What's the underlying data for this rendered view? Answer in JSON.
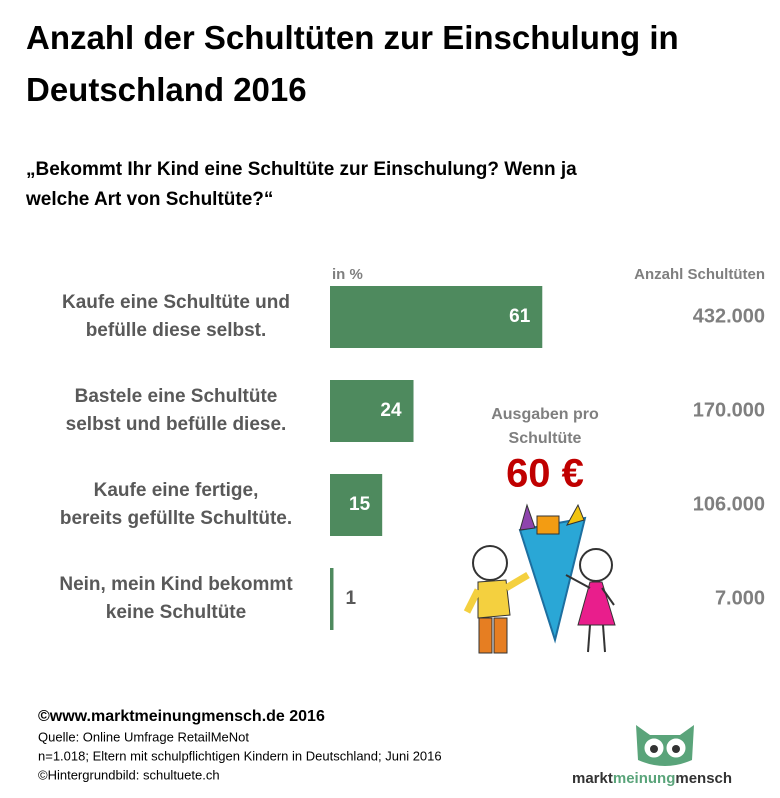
{
  "chart_data": {
    "type": "bar",
    "title": "Anzahl der Schultüten zur Einschulung in\nDeutschland 2016",
    "subtitle": "„Bekommt Ihr Kind eine Schultüte zur Einschulung?  Wenn ja\nwelche Art von Schultüte?“",
    "unit_label": "in %",
    "orientation": "horizontal",
    "color": "#4e8a5e",
    "categories": [
      "Kaufe eine Schultüte und\nbefülle diese selbst.",
      "Bastele eine Schultüte\nselbst und befülle diese.",
      "Kaufe eine fertige,\nbereits gefüllte Schultüte.",
      "Nein, mein Kind bekommt\nkeine Schultüte"
    ],
    "values": [
      61,
      24,
      15,
      1
    ],
    "count_column": {
      "header": "Anzahl Schultüten",
      "values": [
        432000,
        170000,
        106000,
        7000
      ],
      "value_labels": [
        "432.000",
        "170.000",
        "106.000",
        "7.000"
      ]
    },
    "spending": {
      "label": "Ausgaben pro\nSchultüte",
      "value": 60,
      "value_label": "60 €"
    }
  },
  "footer": {
    "copyright": "©www.marktmeinungmensch.de 2016",
    "source": "Quelle: Online Umfrage RetailMeNot",
    "sample": "n=1.018; Eltern mit schulpflichtigen Kindern in Deutschland; Juni 2016",
    "image_credit": "©Hintergrundbild: schultuete.ch"
  },
  "logo": {
    "part1": "markt",
    "part2": "meinung",
    "part3": "mensch"
  }
}
